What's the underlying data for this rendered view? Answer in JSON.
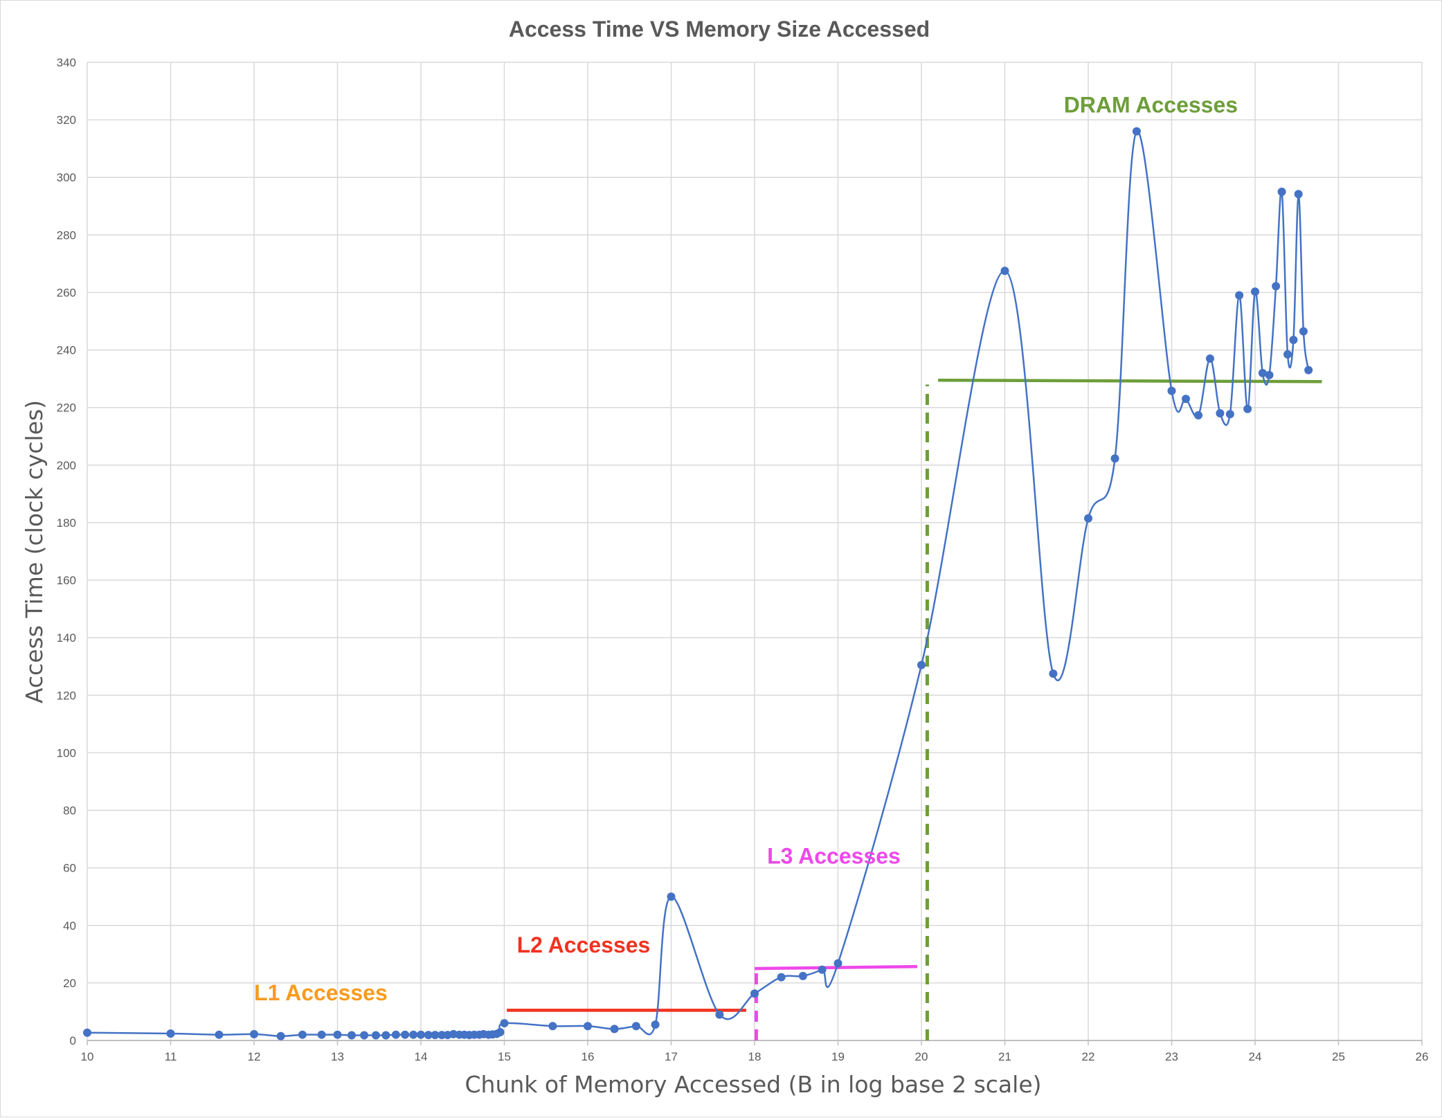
{
  "chart_data": {
    "type": "line",
    "title": "Access Time VS Memory Size Accessed",
    "xlabel": "Chunk of Memory Accessed (B in log base 2 scale)",
    "ylabel": "Access Time (clock cycles)",
    "xlim": [
      10,
      26
    ],
    "ylim": [
      0,
      340
    ],
    "x_ticks": [
      10,
      11,
      12,
      13,
      14,
      15,
      16,
      17,
      18,
      19,
      20,
      21,
      22,
      23,
      24,
      25,
      26
    ],
    "y_ticks": [
      0,
      20,
      40,
      60,
      80,
      100,
      120,
      140,
      160,
      180,
      200,
      220,
      240,
      260,
      280,
      300,
      320,
      340
    ],
    "grid": true,
    "smoothed": true,
    "series_color": "#4472c4",
    "series": [
      {
        "x": [
          10,
          11,
          11.58,
          12,
          12.32,
          12.58,
          12.81,
          13,
          13.17,
          13.32,
          13.46,
          13.58,
          13.7,
          13.81,
          13.91,
          14,
          14.09,
          14.17,
          14.25,
          14.32,
          14.39,
          14.46,
          14.52,
          14.58,
          14.64,
          14.7,
          14.75,
          14.81,
          14.86,
          14.91,
          14.95,
          15,
          15.58,
          16,
          16.32,
          16.58,
          16.81,
          17,
          17.58,
          18,
          18.32,
          18.58,
          18.81,
          19,
          20,
          21,
          21.58,
          22,
          22.32,
          22.58,
          23,
          23.17,
          23.32,
          23.46,
          23.58,
          23.7,
          23.81,
          23.91,
          24,
          24.09,
          24.17,
          24.25,
          24.32,
          24.39,
          24.46,
          24.52,
          24.58,
          24.64
        ],
        "y": [
          2.7,
          2.4,
          2.0,
          2.2,
          1.5,
          2.0,
          2.0,
          2.0,
          1.8,
          1.8,
          1.8,
          1.8,
          2.0,
          2.0,
          2.0,
          2.0,
          1.9,
          1.9,
          1.9,
          1.9,
          2.2,
          2.0,
          2.0,
          1.9,
          2.0,
          2.0,
          2.2,
          2.0,
          2.1,
          2.3,
          2.9,
          6.0,
          5.0,
          5.0,
          4.0,
          5.0,
          5.5,
          50.0,
          9.0,
          16.3,
          22.0,
          22.4,
          24.6,
          26.8,
          130.5,
          267.5,
          127.5,
          181.5,
          202.3,
          316.0,
          225.8,
          223.0,
          217.3,
          237.0,
          218.0,
          217.7,
          259.0,
          219.5,
          260.3,
          232.0,
          231.3,
          262.2,
          295.0,
          238.5,
          243.5,
          294.2,
          246.5,
          233.0
        ]
      }
    ],
    "annotations": [
      {
        "text": "L1 Accesses",
        "color": "#f79b1e",
        "x": 12.8,
        "y": 14
      },
      {
        "text": "L2 Accesses",
        "color": "#f03320",
        "x": 15.95,
        "y": 30.5
      },
      {
        "text": "L3 Accesses",
        "color": "#ee48ea",
        "x": 18.95,
        "y": 61.5
      },
      {
        "text": "DRAM Accesses",
        "color": "#6d9e3a",
        "x": 22.75,
        "y": 322.5
      }
    ],
    "level_lines": [
      {
        "name": "L2",
        "color": "#f03320",
        "x1": 15.03,
        "y1": 10.5,
        "x2": 17.9,
        "y2": 10.5,
        "dashed": false
      },
      {
        "name": "L3",
        "color": "#ee48ea",
        "x1": 18.0,
        "y1": 25.0,
        "x2": 19.95,
        "y2": 25.7,
        "dashed": false
      },
      {
        "name": "DRAM",
        "color": "#6d9e3a",
        "x1": 20.2,
        "y1": 229.5,
        "x2": 24.8,
        "y2": 229.0,
        "dashed": false
      },
      {
        "name": "L3 boundary",
        "color": "#ee48ea",
        "x1": 18.02,
        "y1": 0,
        "x2": 18.02,
        "y2": 25.0,
        "dashed": true
      },
      {
        "name": "DRAM boundary",
        "color": "#6d9e3a",
        "x1": 20.07,
        "y1": 0,
        "x2": 20.07,
        "y2": 228,
        "dashed": true
      }
    ]
  }
}
